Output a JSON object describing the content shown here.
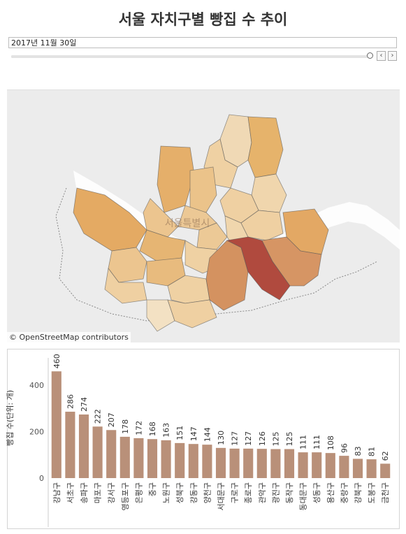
{
  "title": "서울 자치구별 빵집 수 추이",
  "date_filter": {
    "value": "2017년 11월 30일",
    "slider_position": 1.0,
    "prev_label": "‹",
    "next_label": "›"
  },
  "map": {
    "attribution": "© OpenStreetMap contributors",
    "label": "서울특별시",
    "colors": {
      "low": "#f0d9b5",
      "mid": "#e0ae6f",
      "high": "#b04a3e"
    }
  },
  "chart_data": {
    "type": "bar",
    "title": "",
    "xlabel": "",
    "ylabel": "빵집 수(단위: 개)",
    "ylim": [
      0,
      500
    ],
    "yticks": [
      0,
      200,
      400
    ],
    "bar_color": "#b99079",
    "categories": [
      "강남구",
      "서초구",
      "송파구",
      "마포구",
      "강서구",
      "영등포구",
      "은평구",
      "중구",
      "노원구",
      "성북구",
      "강동구",
      "양천구",
      "서대문구",
      "구로구",
      "종로구",
      "관악구",
      "광진구",
      "동작구",
      "동대문구",
      "성동구",
      "용산구",
      "중랑구",
      "강북구",
      "도봉구",
      "금천구"
    ],
    "values": [
      460,
      286,
      274,
      222,
      207,
      178,
      172,
      168,
      163,
      151,
      147,
      144,
      130,
      127,
      127,
      126,
      125,
      125,
      111,
      111,
      108,
      96,
      83,
      81,
      62
    ]
  }
}
